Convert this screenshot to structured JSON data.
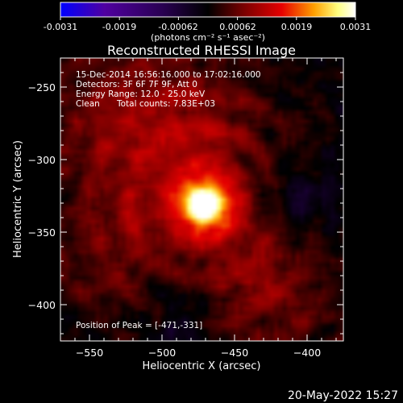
{
  "colorbar": {
    "tick_labels": [
      "-0.0031",
      "-0.0019",
      "-0.00062",
      "0.00062",
      "0.0019",
      "0.0031"
    ],
    "units": "(photons cm⁻² s⁻¹ asec⁻²)",
    "colors": [
      "#0000ff",
      "#5000a0",
      "#280050",
      "#000000",
      "#780000",
      "#e60000",
      "#ffa000",
      "#ffff80",
      "#ffffff"
    ]
  },
  "info": {
    "line1": "15-Dec-2014 16:56:16.000 to 17:02:16.000",
    "line2": "Detectors: 3F 6F 7F 9F, Att 0",
    "line3": "Energy Range: 12.0 - 25.0 keV",
    "line4_label": "Clean",
    "line4_counts": "Total counts: 7.83E+03",
    "peak": "Position of Peak = [-471,-331]"
  },
  "footer": {
    "date": "20-May-2022 15:27"
  },
  "chart_data": {
    "type": "heatmap",
    "title": "Reconstructed RHESSI Image",
    "xlabel": "Heliocentric X (arcsec)",
    "ylabel": "Heliocentric Y (arcsec)",
    "xlim": [
      -570,
      -375
    ],
    "ylim": [
      -425,
      -230
    ],
    "x_ticks": [
      -550,
      -500,
      -450,
      -400
    ],
    "y_ticks": [
      -250,
      -300,
      -350,
      -400
    ],
    "x_tick_labels": [
      "−550",
      "−500",
      "−450",
      "−400"
    ],
    "y_tick_labels": [
      "−250",
      "−300",
      "−350",
      "−400"
    ],
    "value_range": [
      -0.0031,
      0.0031
    ],
    "peak_position": [
      -471,
      -331
    ],
    "peak_value": 0.0031,
    "features": [
      {
        "kind": "source",
        "x": -471,
        "y": -331,
        "value": 0.0031,
        "sigma_arcsec": 11
      },
      {
        "kind": "diffuse",
        "x": -470,
        "y": -330,
        "value": 0.00075,
        "sigma_arcsec": 48
      },
      {
        "kind": "diffuse",
        "x": -535,
        "y": -270,
        "value": 0.0006,
        "sigma_arcsec": 40
      },
      {
        "kind": "diffuse",
        "x": -480,
        "y": -275,
        "value": 0.00045,
        "sigma_arcsec": 32
      },
      {
        "kind": "diffuse",
        "x": -425,
        "y": -395,
        "value": 0.0006,
        "sigma_arcsec": 35
      },
      {
        "kind": "diffuse",
        "x": -540,
        "y": -365,
        "value": 0.0004,
        "sigma_arcsec": 32
      },
      {
        "kind": "negative",
        "x": -405,
        "y": -330,
        "value": -0.0006,
        "sigma_arcsec": 22
      },
      {
        "kind": "negative",
        "x": -487,
        "y": -405,
        "value": -0.0005,
        "sigma_arcsec": 20
      }
    ]
  }
}
